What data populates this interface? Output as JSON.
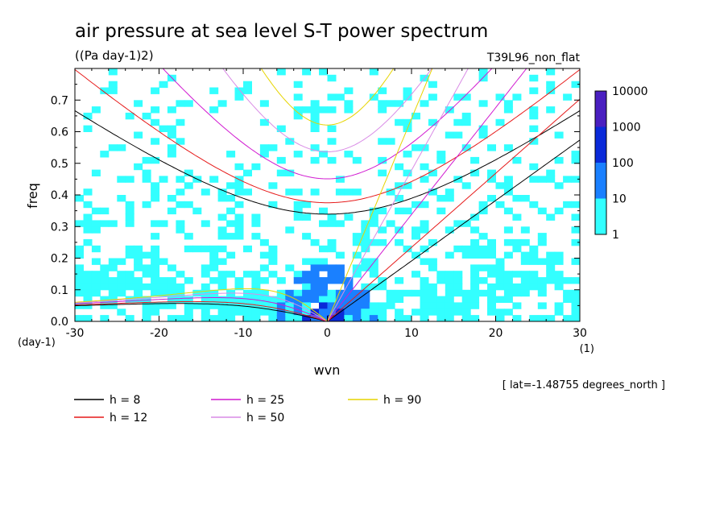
{
  "chart_data": {
    "type": "heatmap",
    "title": "air pressure at sea level S-T power spectrum",
    "subtitle": "((Pa day-1)2)",
    "run_label": "T39L96_non_flat",
    "xlabel": "wvn",
    "ylabel": "freq",
    "x_unit": "(1)",
    "y_unit": "(day-1)",
    "xlim": [
      -30,
      30
    ],
    "ylim": [
      0,
      0.8
    ],
    "x_ticks": [
      -30,
      -20,
      -10,
      0,
      10,
      20,
      30
    ],
    "y_ticks": [
      0.0,
      0.1,
      0.2,
      0.3,
      0.4,
      0.5,
      0.6,
      0.7
    ],
    "x_tick_labels": [
      "-30",
      "-20",
      "-10",
      "0",
      "10",
      "20",
      "30"
    ],
    "y_tick_labels": [
      "0.0",
      "0.1",
      "0.2",
      "0.3",
      "0.4",
      "0.5",
      "0.6",
      "0.7"
    ],
    "colorbar": {
      "levels": [
        "1",
        "10",
        "100",
        "1000",
        "10000"
      ],
      "colors": [
        "#33ffff",
        "#1a80ff",
        "#0a2ad9",
        "#4a1fc0"
      ]
    },
    "annotation": "[ lat=-1.48755 degrees_north ]",
    "dispersion_curves": [
      {
        "label": "h =  8",
        "h": 8,
        "color": "#000000"
      },
      {
        "label": "h = 12",
        "h": 12,
        "color": "#e61a1a"
      },
      {
        "label": "h = 25",
        "h": 25,
        "color": "#d11ad1"
      },
      {
        "label": "h = 50",
        "h": 50,
        "color": "#d98ce6"
      },
      {
        "label": "h = 90",
        "h": 90,
        "color": "#e6d400"
      }
    ]
  }
}
